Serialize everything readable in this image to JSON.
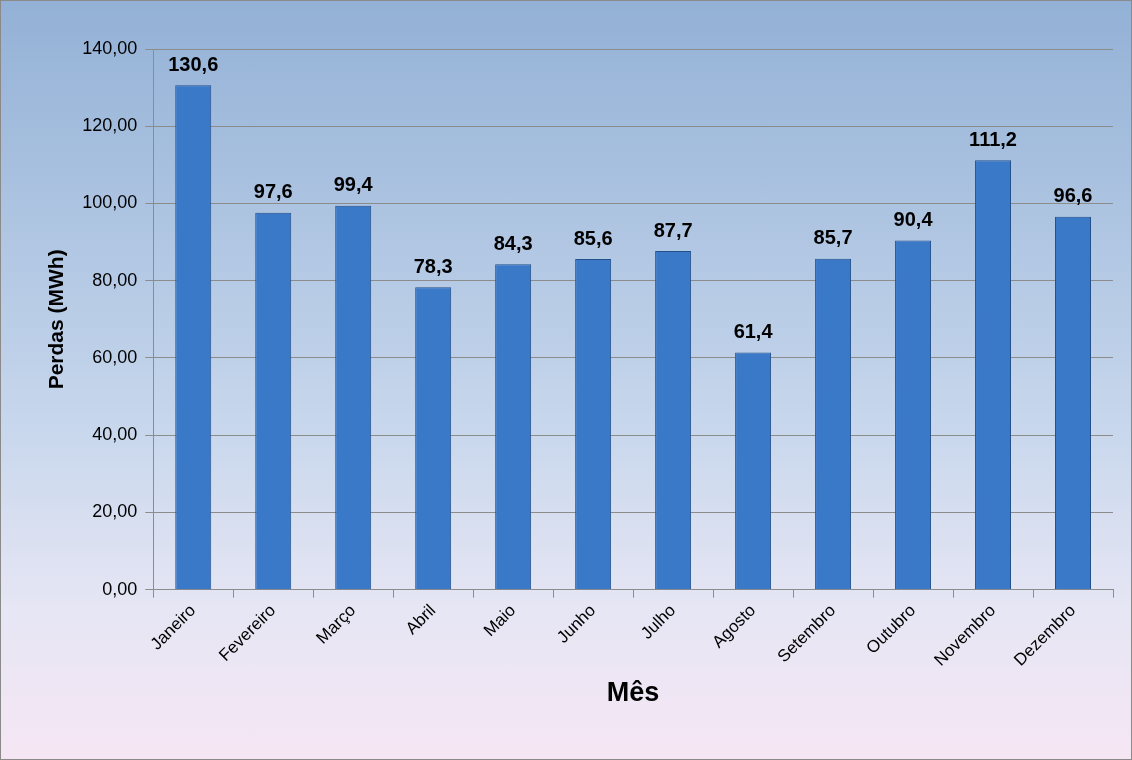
{
  "chart_data": {
    "type": "bar",
    "xlabel": "Mês",
    "ylabel": "Perdas (MWh)",
    "categories": [
      "Janeiro",
      "Fevereiro",
      "Março",
      "Abril",
      "Maio",
      "Junho",
      "Julho",
      "Agosto",
      "Setembro",
      "Outubro",
      "Novembro",
      "Dezembro"
    ],
    "values": [
      130.6,
      97.6,
      99.4,
      78.3,
      84.3,
      85.6,
      87.7,
      61.4,
      85.7,
      90.4,
      111.2,
      96.6
    ],
    "value_labels": [
      "130,6",
      "97,6",
      "99,4",
      "78,3",
      "84,3",
      "85,6",
      "87,7",
      "61,4",
      "85,7",
      "90,4",
      "111,2",
      "96,6"
    ],
    "color": "#3a78c8",
    "ylim": [
      0,
      140
    ],
    "yticks": [
      {
        "value": 0,
        "label": "0,00"
      },
      {
        "value": 20,
        "label": "20,00"
      },
      {
        "value": 40,
        "label": "40,00"
      },
      {
        "value": 60,
        "label": "60,00"
      },
      {
        "value": 80,
        "label": "80,00"
      },
      {
        "value": 100,
        "label": "100,00"
      },
      {
        "value": 120,
        "label": "120,00"
      },
      {
        "value": 140,
        "label": "140,00"
      }
    ],
    "grid": "y",
    "legend": false
  }
}
